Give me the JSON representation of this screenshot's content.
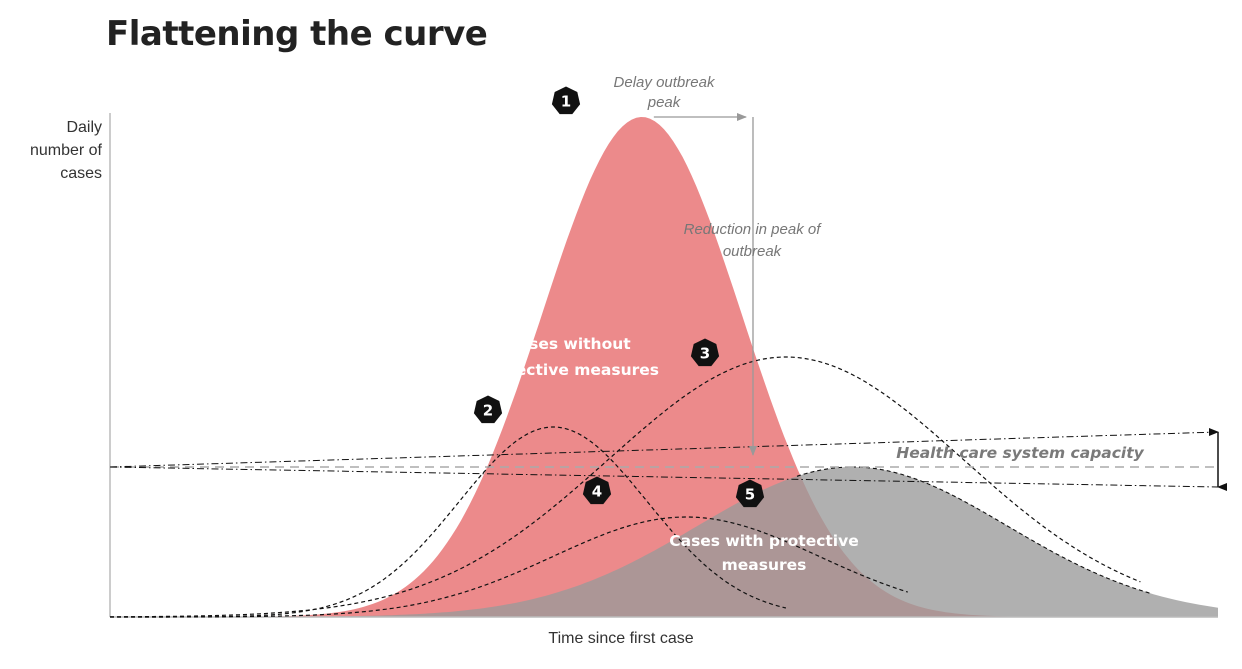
{
  "chart_data": {
    "type": "area",
    "title": "Flattening the curve",
    "ylabel": "Daily\nnumber of\ncases",
    "xlabel": "Time since first case",
    "grid": false,
    "legend": "none",
    "series": [
      {
        "name": "Cases without protective measures",
        "shape": "bell",
        "color": "#ec8a8b",
        "peak_time": 0.48,
        "peak_value": 1.0,
        "spread": 0.09
      },
      {
        "name": "Cases with protective measures",
        "shape": "bell",
        "color": "#9a9a9a",
        "peak_time": 0.67,
        "peak_value": 0.3,
        "spread": 0.14
      }
    ],
    "scenario_curves": [
      {
        "id": "2",
        "peak_time": 0.4,
        "peak_value": 0.38,
        "spread": 0.085
      },
      {
        "id": "3",
        "peak_time": 0.61,
        "peak_value": 0.52,
        "spread": 0.16
      },
      {
        "id": "4",
        "peak_time": 0.52,
        "peak_value": 0.2,
        "spread": 0.12
      }
    ],
    "capacity": {
      "label": "Health care system capacity",
      "value": 0.3,
      "lower_bound_at_end": 0.26,
      "upper_bound_at_end": 0.37
    },
    "annotations": {
      "delay": "Delay outbreak\npeak",
      "reduction": "Reduction in peak of\noutbreak"
    },
    "markers": [
      "1",
      "2",
      "3",
      "4",
      "5"
    ]
  }
}
